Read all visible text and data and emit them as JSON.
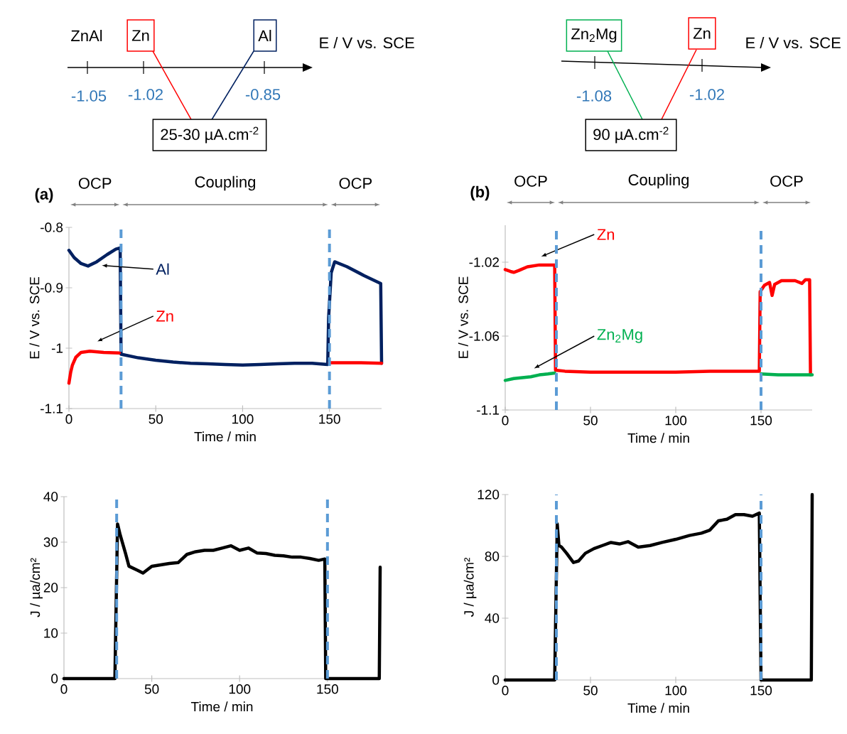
{
  "chart_data": [
    {
      "type": "other",
      "xlabel": "E / V vs. SCE",
      "colors": [
        "#ff0000",
        "#002060"
      ],
      "annotations": [
        "ZnAl",
        "Zn",
        "Al",
        "-1.05",
        "-1.02",
        "-0.85",
        "25-30 µA.cm$^{-2}$"
      ]
    },
    {
      "type": "other",
      "xlabel": "E / V vs. SCE",
      "colors": [
        "#00b050",
        "#ff0000"
      ],
      "annotations": [
        "Zn$_{2}$Mg",
        "Zn",
        "-1.08",
        "-1.02",
        "90 µA.cm$^{-2}$"
      ]
    },
    {
      "type": "line",
      "title": "(a)",
      "xlabel": "Time / min",
      "ylabel": "E / V vs. SCE",
      "xlim": [
        0,
        180
      ],
      "ylim": [
        -1.1,
        -0.8
      ],
      "xticks": [
        0,
        50,
        100,
        150
      ],
      "yticks": [
        -0.8,
        -0.9,
        -1,
        -1.1
      ],
      "series": [
        {
          "color": "#002060",
          "x": [
            0,
            3,
            7,
            11,
            16,
            22,
            27,
            29.5,
            30,
            35,
            40,
            50,
            60,
            70,
            80,
            90,
            100,
            110,
            120,
            130,
            140,
            149,
            149.5,
            151,
            153,
            160,
            170,
            179.5,
            180
          ],
          "values": [
            -0.838,
            -0.85,
            -0.86,
            -0.864,
            -0.857,
            -0.845,
            -0.836,
            -0.834,
            -1.01,
            -1.013,
            -1.016,
            -1.02,
            -1.023,
            -1.025,
            -1.026,
            -1.027,
            -1.028,
            -1.027,
            -1.026,
            -1.025,
            -1.025,
            -1.027,
            -0.95,
            -0.875,
            -0.857,
            -0.865,
            -0.88,
            -0.893,
            -1.025
          ]
        },
        {
          "color": "#ff0000",
          "x": [
            0,
            1,
            2,
            4,
            7,
            12,
            20,
            29,
            30,
            150,
            165,
            180
          ],
          "values": [
            -1.058,
            -1.04,
            -1.028,
            -1.015,
            -1.007,
            -1.005,
            -1.007,
            -1.008,
            null,
            -1.024,
            -1.024,
            -1.025
          ]
        }
      ],
      "annotations": [
        "OCP",
        "Coupling",
        "OCP",
        "Al",
        "Zn"
      ],
      "ref_lines": [
        {
          "axis": "x",
          "value": 30,
          "color": "#5b9bd5",
          "line_style": "dashed"
        },
        {
          "axis": "x",
          "value": 150,
          "color": "#5b9bd5",
          "line_style": "dashed"
        }
      ]
    },
    {
      "type": "line",
      "title": "(b)",
      "xlabel": "Time / min",
      "ylabel": "E / V vs. SCE",
      "xlim": [
        0,
        180
      ],
      "ylim": [
        -1.1,
        -1.0
      ],
      "xticks": [
        0,
        50,
        100,
        150
      ],
      "yticks": [
        -1.02,
        -1.06,
        -1.1
      ],
      "series": [
        {
          "color": "#ff0000",
          "x": [
            0,
            3,
            5,
            8,
            13,
            20,
            29,
            29.5,
            35,
            50,
            70,
            100,
            120,
            140,
            149,
            149.5,
            152,
            155,
            156.5,
            158,
            162,
            170,
            174,
            176,
            178.5,
            179
          ],
          "values": [
            -1.024,
            -1.025,
            -1.0255,
            -1.0245,
            -1.0225,
            -1.0215,
            -1.0215,
            -1.0785,
            -1.079,
            -1.0795,
            -1.0795,
            -1.0795,
            -1.079,
            -1.079,
            -1.079,
            -1.036,
            -1.0325,
            -1.031,
            -1.038,
            -1.032,
            -1.03,
            -1.03,
            -1.0315,
            -1.0295,
            -1.0295,
            -1.081
          ]
        },
        {
          "color": "#00b050",
          "x": [
            0,
            5,
            10,
            15,
            20,
            25,
            29,
            30,
            150,
            160,
            170,
            180
          ],
          "values": [
            -1.084,
            -1.083,
            -1.0825,
            -1.082,
            -1.081,
            -1.0805,
            -1.08,
            null,
            -1.0805,
            -1.081,
            -1.081,
            -1.081
          ]
        }
      ],
      "annotations": [
        "OCP",
        "Coupling",
        "OCP",
        "Zn",
        "Zn$_{2}$Mg"
      ],
      "ref_lines": [
        {
          "axis": "x",
          "value": 30,
          "color": "#5b9bd5",
          "line_style": "dashed"
        },
        {
          "axis": "x",
          "value": 150,
          "color": "#5b9bd5",
          "line_style": "dashed"
        }
      ]
    },
    {
      "type": "line",
      "xlabel": "Time / min",
      "ylabel": "J / µa/cm²",
      "xlim": [
        0,
        180
      ],
      "ylim": [
        0,
        40
      ],
      "xticks": [
        0,
        50,
        100,
        150
      ],
      "yticks": [
        0,
        10,
        20,
        30,
        40
      ],
      "series": [
        {
          "color": "#000000",
          "x": [
            0,
            29,
            30.5,
            32,
            35,
            37,
            42,
            45,
            50,
            55,
            60,
            65,
            70,
            75,
            80,
            85,
            90,
            95,
            100,
            105,
            110,
            115,
            120,
            125,
            130,
            135,
            140,
            145,
            148.5,
            149,
            179.5,
            180
          ],
          "values": [
            0,
            0,
            34,
            31.6,
            27.6,
            24.7,
            23.8,
            23.2,
            24.7,
            25,
            25.3,
            25.5,
            27.3,
            27.9,
            28.2,
            28.2,
            28.7,
            29.2,
            28.2,
            28.7,
            27.6,
            27.5,
            27.1,
            27,
            26.7,
            26.7,
            26.4,
            26,
            26.3,
            0,
            0,
            24.5
          ]
        }
      ],
      "ref_lines": [
        {
          "axis": "x",
          "value": 30,
          "color": "#5b9bd5",
          "line_style": "dashed"
        },
        {
          "axis": "x",
          "value": 150,
          "color": "#5b9bd5",
          "line_style": "dashed"
        }
      ]
    },
    {
      "type": "line",
      "xlabel": "Time / min",
      "ylabel": "J / µa/cm²",
      "xlim": [
        0,
        180
      ],
      "ylim": [
        0,
        120
      ],
      "xticks": [
        0,
        50,
        100,
        150
      ],
      "yticks": [
        0,
        40,
        80,
        120
      ],
      "series": [
        {
          "color": "#000000",
          "x": [
            0,
            29,
            30.5,
            31.5,
            33,
            36,
            40,
            43,
            47,
            52,
            57,
            62,
            67,
            72,
            78,
            85,
            92,
            100,
            108,
            115,
            120,
            125,
            130,
            135,
            140,
            145,
            149,
            150,
            179.5,
            180
          ],
          "values": [
            0,
            0,
            101,
            87,
            86,
            82,
            76,
            77,
            82,
            85,
            87,
            89,
            88,
            89.5,
            86,
            87,
            89,
            91,
            93.5,
            95,
            97,
            103,
            104,
            107,
            107,
            106,
            108,
            0,
            0,
            120
          ]
        }
      ],
      "ref_lines": [
        {
          "axis": "x",
          "value": 30,
          "color": "#5b9bd5",
          "line_style": "dashed"
        },
        {
          "axis": "x",
          "value": 150,
          "color": "#5b9bd5",
          "line_style": "dashed"
        }
      ]
    }
  ]
}
